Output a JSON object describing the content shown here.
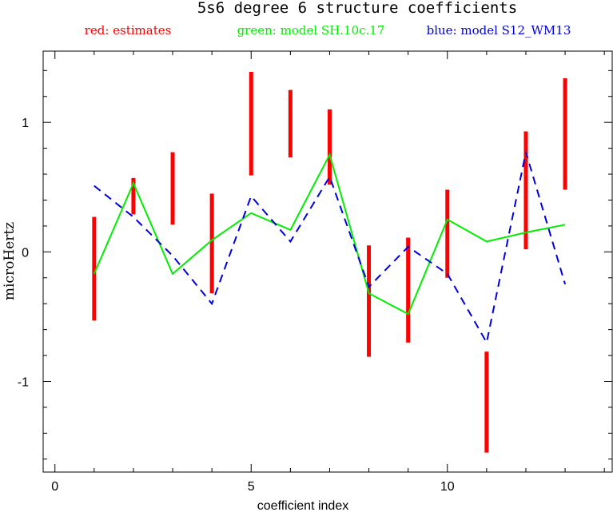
{
  "chart_data": {
    "type": "line",
    "title": "5s6 degree 6 structure coefficients",
    "xlabel": "coefficient index",
    "ylabel": "microHertz",
    "xlim": [
      -0.3,
      14.2
    ],
    "ylim": [
      -1.7,
      1.55
    ],
    "xticks": [
      0,
      5,
      10
    ],
    "yticks": [
      -1,
      0,
      1
    ],
    "legend": [
      {
        "text": "red: estimates",
        "color": "#ff0000"
      },
      {
        "text": "green: model SH.10c.17",
        "color": "#00ee00"
      },
      {
        "text": "blue: model S12_WM13",
        "color": "#0000dd"
      }
    ],
    "estimates": {
      "name": "red: estimates",
      "color": "#ff0000",
      "x": [
        1,
        2,
        3,
        4,
        5,
        6,
        7,
        8,
        9,
        10,
        11,
        12,
        13
      ],
      "low": [
        -0.53,
        0.29,
        0.21,
        -0.32,
        0.59,
        0.73,
        0.52,
        -0.81,
        -0.7,
        -0.2,
        -1.55,
        0.02,
        0.48
      ],
      "high": [
        0.27,
        0.57,
        0.77,
        0.45,
        1.39,
        1.25,
        1.1,
        0.05,
        0.11,
        0.48,
        -0.77,
        0.93,
        1.34
      ]
    },
    "series": [
      {
        "name": "green: model SH.10c.17",
        "color": "#00ee00",
        "style": "solid",
        "x": [
          1,
          2,
          3,
          4,
          5,
          6,
          7,
          8,
          9,
          10,
          11,
          12,
          13
        ],
        "values": [
          -0.17,
          0.53,
          -0.17,
          0.09,
          0.3,
          0.17,
          0.75,
          -0.32,
          -0.48,
          0.25,
          0.08,
          0.15,
          0.21
        ]
      },
      {
        "name": "blue: model S12_WM13",
        "color": "#0000dd",
        "style": "dashed",
        "x": [
          1,
          2,
          3,
          4,
          5,
          6,
          7,
          8,
          9,
          10,
          11,
          12,
          13
        ],
        "values": [
          0.51,
          0.27,
          -0.03,
          -0.4,
          0.43,
          0.08,
          0.58,
          -0.27,
          0.04,
          -0.17,
          -0.7,
          0.77,
          -0.25
        ]
      }
    ]
  }
}
